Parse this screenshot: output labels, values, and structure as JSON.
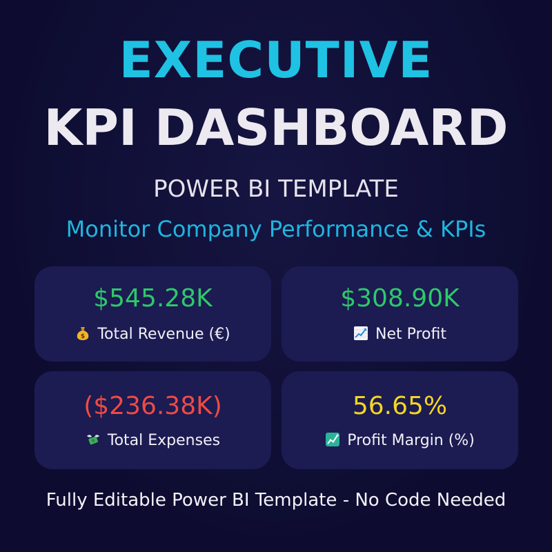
{
  "header": {
    "title_line1": "EXECUTIVE",
    "title_line2": "KPI DASHBOARD",
    "subtitle": "POWER BI TEMPLATE",
    "tagline": "Monitor Company Performance & KPIs"
  },
  "kpis": [
    {
      "value": "$545.28K",
      "label": "Total Revenue (€)",
      "icon": "money-bag-icon",
      "color": "#2dc96a"
    },
    {
      "value": "$308.90K",
      "label": "Net Profit",
      "icon": "chart-increasing-icon",
      "color": "#2dc96a"
    },
    {
      "value": "($236.38K)",
      "label": "Total Expenses",
      "icon": "money-with-wings-icon",
      "color": "#ef4b43"
    },
    {
      "value": "56.65%",
      "label": "Profit Margin (%)",
      "icon": "chart-icon",
      "color": "#f5d623"
    }
  ],
  "footer": {
    "text": "Fully Editable Power BI Template - No Code Needed"
  },
  "colors": {
    "background": "#0d0c30",
    "card": "#1c1b52",
    "accent": "#1fc2e3",
    "positive": "#2dc96a",
    "negative": "#ef4b43",
    "highlight": "#f5d623"
  }
}
